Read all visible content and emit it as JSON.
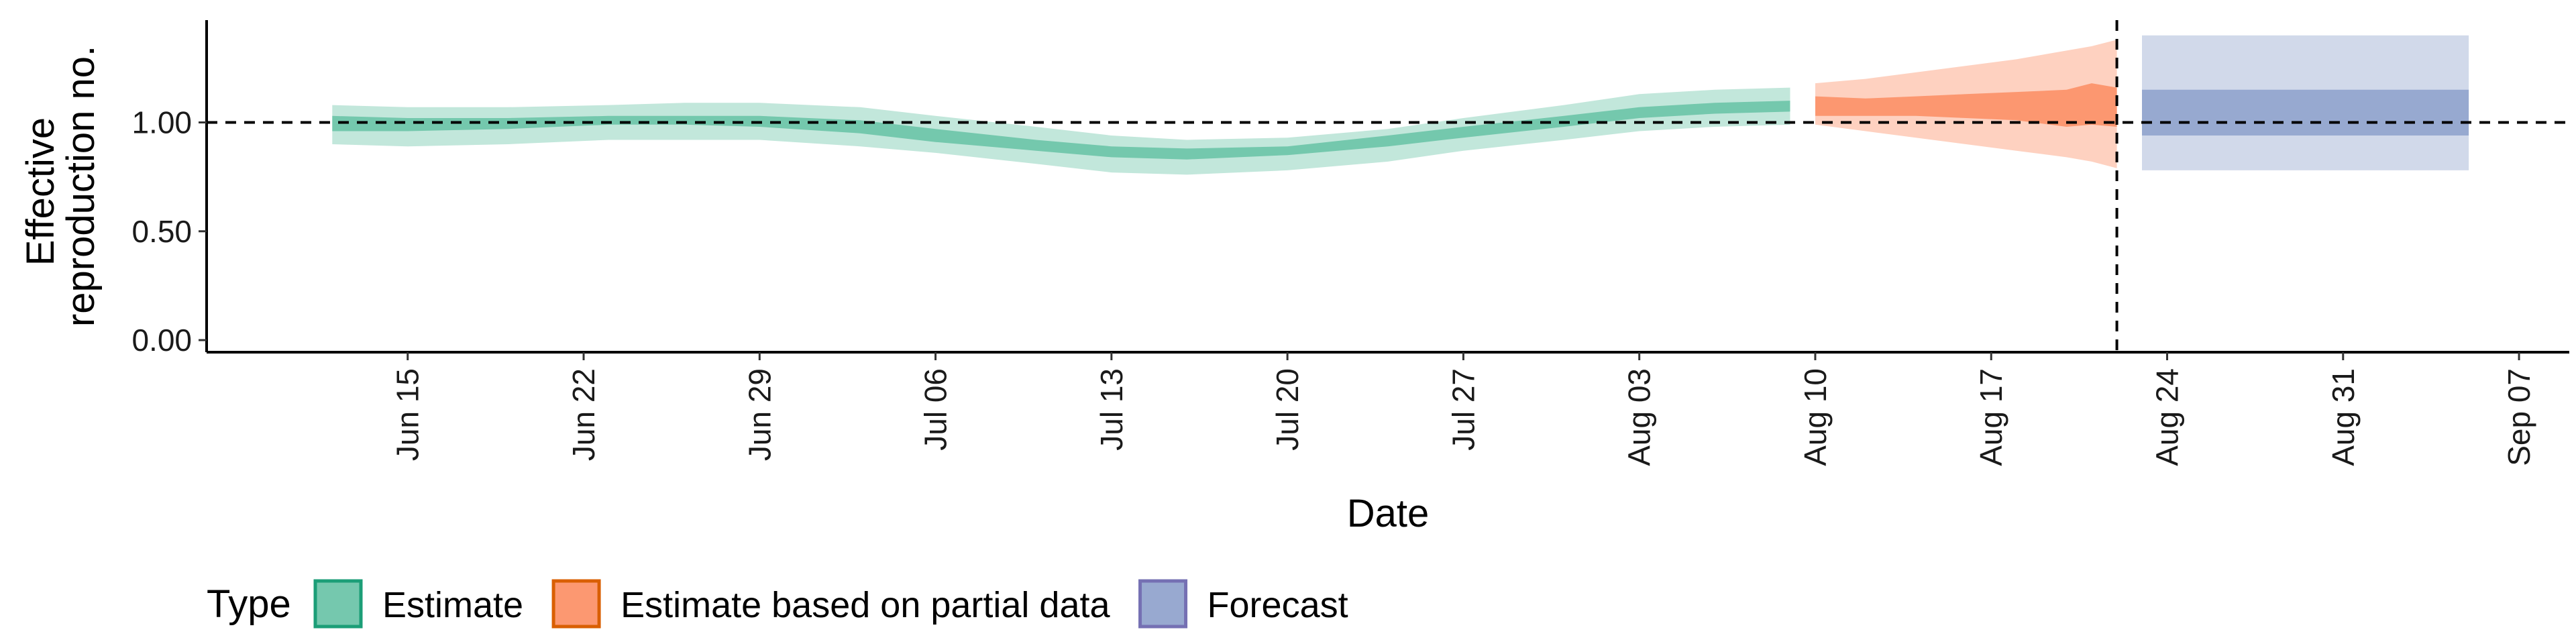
{
  "chart_data": {
    "type": "area",
    "ylabel_lines": [
      "Effective",
      "reproduction no."
    ],
    "xlabel": "Date",
    "ylim": [
      0,
      1.47
    ],
    "y_ticks": [
      0.0,
      0.5,
      1.0
    ],
    "y_tick_labels": [
      "0.00",
      "0.50",
      "1.00"
    ],
    "x_range": [
      "2020-06-07",
      "2020-09-09"
    ],
    "x_ticks": [
      "2020-06-15",
      "2020-06-22",
      "2020-06-29",
      "2020-07-06",
      "2020-07-13",
      "2020-07-20",
      "2020-07-27",
      "2020-08-03",
      "2020-08-10",
      "2020-08-17",
      "2020-08-24",
      "2020-08-31",
      "2020-09-07"
    ],
    "x_tick_labels": [
      "Jun 15",
      "Jun 22",
      "Jun 29",
      "Jul 06",
      "Jul 13",
      "Jul 20",
      "Jul 27",
      "Aug 03",
      "Aug 10",
      "Aug 17",
      "Aug 24",
      "Aug 31",
      "Sep 07"
    ],
    "reference_hline": 1.0,
    "reference_vline": "2020-08-22",
    "legend": {
      "title": "Type",
      "position": "bottom",
      "items": [
        "Estimate",
        "Estimate based on partial data",
        "Forecast"
      ]
    },
    "series": [
      {
        "name": "Estimate",
        "fill": "#66c2a5",
        "stroke": "#1b9e77",
        "x": [
          "2020-06-12",
          "2020-06-15",
          "2020-06-19",
          "2020-06-23",
          "2020-06-26",
          "2020-06-29",
          "2020-07-03",
          "2020-07-06",
          "2020-07-10",
          "2020-07-13",
          "2020-07-16",
          "2020-07-20",
          "2020-07-24",
          "2020-07-27",
          "2020-07-31",
          "2020-08-03",
          "2020-08-06",
          "2020-08-09"
        ],
        "outer_lower": [
          0.9,
          0.89,
          0.9,
          0.92,
          0.92,
          0.92,
          0.89,
          0.86,
          0.81,
          0.77,
          0.76,
          0.78,
          0.82,
          0.87,
          0.92,
          0.96,
          0.98,
          0.99
        ],
        "outer_upper": [
          1.08,
          1.07,
          1.07,
          1.08,
          1.09,
          1.09,
          1.07,
          1.03,
          0.98,
          0.94,
          0.92,
          0.93,
          0.97,
          1.02,
          1.08,
          1.13,
          1.15,
          1.16
        ],
        "inner_lower": [
          0.96,
          0.96,
          0.97,
          0.99,
          0.99,
          0.98,
          0.95,
          0.91,
          0.87,
          0.84,
          0.83,
          0.85,
          0.89,
          0.93,
          0.98,
          1.02,
          1.04,
          1.05
        ],
        "inner_upper": [
          1.03,
          1.02,
          1.02,
          1.03,
          1.03,
          1.03,
          1.01,
          0.97,
          0.92,
          0.89,
          0.88,
          0.89,
          0.94,
          0.98,
          1.03,
          1.07,
          1.09,
          1.1
        ]
      },
      {
        "name": "Estimate based on partial data",
        "fill": "#fc8d62",
        "stroke": "#d95f02",
        "x": [
          "2020-08-10",
          "2020-08-12",
          "2020-08-14",
          "2020-08-16",
          "2020-08-18",
          "2020-08-20",
          "2020-08-21",
          "2020-08-22"
        ],
        "outer_lower": [
          0.99,
          0.96,
          0.93,
          0.9,
          0.87,
          0.84,
          0.82,
          0.79
        ],
        "outer_upper": [
          1.18,
          1.2,
          1.23,
          1.26,
          1.29,
          1.33,
          1.35,
          1.38
        ],
        "inner_lower": [
          1.03,
          1.03,
          1.03,
          1.02,
          1.01,
          0.98,
          0.99,
          0.98
        ],
        "inner_upper": [
          1.12,
          1.11,
          1.12,
          1.13,
          1.14,
          1.15,
          1.18,
          1.16
        ]
      },
      {
        "name": "Forecast",
        "fill": "#8da0cb",
        "stroke": "#7570b3",
        "x": [
          "2020-08-23",
          "2020-09-05"
        ],
        "outer_lower": [
          0.78,
          0.78
        ],
        "outer_upper": [
          1.4,
          1.4
        ],
        "inner_lower": [
          0.94,
          0.94
        ],
        "inner_upper": [
          1.15,
          1.15
        ]
      }
    ]
  }
}
